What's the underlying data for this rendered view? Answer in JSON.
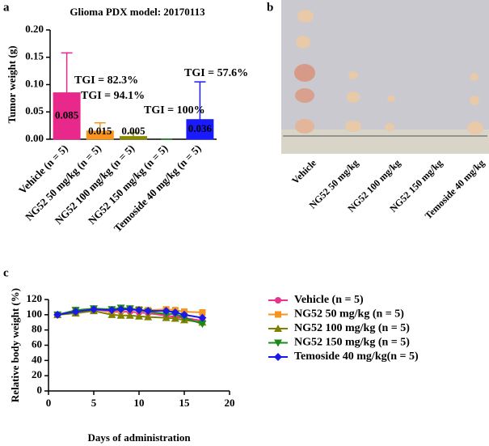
{
  "panels": [
    "a",
    "b",
    "c"
  ],
  "photo": {
    "labels": [
      "Vehicle",
      "NG52 50 mg/kg",
      "NG52 100 mg/kg",
      "NG52 150 mg/kg",
      "Temoside 40 mg/kg"
    ]
  },
  "chart_data": [
    {
      "type": "bar",
      "title": "Glioma PDX model: 20170113",
      "y_label": "Tumor weight (g)",
      "categories": [
        "Vehicle (n = 5)",
        "NG52 50 mg/kg (n = 5)",
        "NG52 100 mg/kg (n = 5)",
        "NG52 150 mg/kg (n = 5)",
        "Temoside 40 mg/kg (n = 5)"
      ],
      "values": [
        0.085,
        0.015,
        0.005,
        0,
        0.036
      ],
      "value_labels": [
        "0.085",
        "0.015",
        "0.005",
        null,
        "0.036"
      ],
      "errors": [
        0.073,
        0.015,
        0.007,
        0,
        0.069
      ],
      "colors": [
        "#e8288a",
        "#f7941d",
        "#8b8b00",
        "#1a8a1a",
        "#1a1aff"
      ],
      "annotations": [
        "TGI = 82.3%",
        "TGI = 94.1%",
        "TGI = 100%",
        "TGI = 57.6%"
      ],
      "ylim": [
        0,
        0.2
      ],
      "yticks": [
        {
          "value": 0,
          "label": "0.00"
        },
        {
          "value": 0.05,
          "label": "0.05"
        },
        {
          "value": 0.1,
          "label": "0.10"
        },
        {
          "value": 0.15,
          "label": "0.15"
        },
        {
          "value": 0.2,
          "label": "0.20"
        }
      ]
    },
    {
      "type": "line",
      "x_label": "Days of administration",
      "y_label": "Relative body weight (%)",
      "x": [
        1,
        3,
        5,
        7,
        8,
        9,
        10,
        11,
        13,
        14,
        15,
        17
      ],
      "series": [
        {
          "name": "Vehicle (n = 5)",
          "color": "#e6338c",
          "marker": "circle",
          "values": [
            100,
            103,
            107,
            104,
            104,
            104,
            103,
            102,
            99,
            97,
            96,
            92
          ]
        },
        {
          "name": "NG52 50 mg/kg (n = 5)",
          "color": "#f7941d",
          "marker": "square",
          "values": [
            100,
            104,
            108,
            105,
            106,
            108,
            107,
            106,
            107,
            106,
            104,
            103
          ]
        },
        {
          "name": "NG52 100 mg/kg (n = 5)",
          "color": "#808000",
          "marker": "triangle-up",
          "values": [
            100,
            102,
            105,
            100,
            99,
            99,
            98,
            97,
            96,
            95,
            93,
            90
          ]
        },
        {
          "name": "NG52 150 mg/kg (n = 5)",
          "color": "#1a8a1a",
          "marker": "triangle-down",
          "values": [
            100,
            106,
            108,
            107,
            109,
            108,
            106,
            104,
            101,
            101,
            96,
            88
          ]
        },
        {
          "name": "Temoside 40 mg/kg(n = 5)",
          "color": "#1a1ae6",
          "marker": "diamond",
          "values": [
            100,
            104,
            107,
            106,
            107,
            107,
            106,
            105,
            105,
            103,
            100,
            96
          ]
        }
      ],
      "xlim": [
        0,
        20
      ],
      "xticks": [
        0,
        5,
        10,
        15,
        20
      ],
      "ylim": [
        0,
        120
      ],
      "yticks": [
        0,
        20,
        40,
        60,
        80,
        100,
        120
      ]
    }
  ]
}
